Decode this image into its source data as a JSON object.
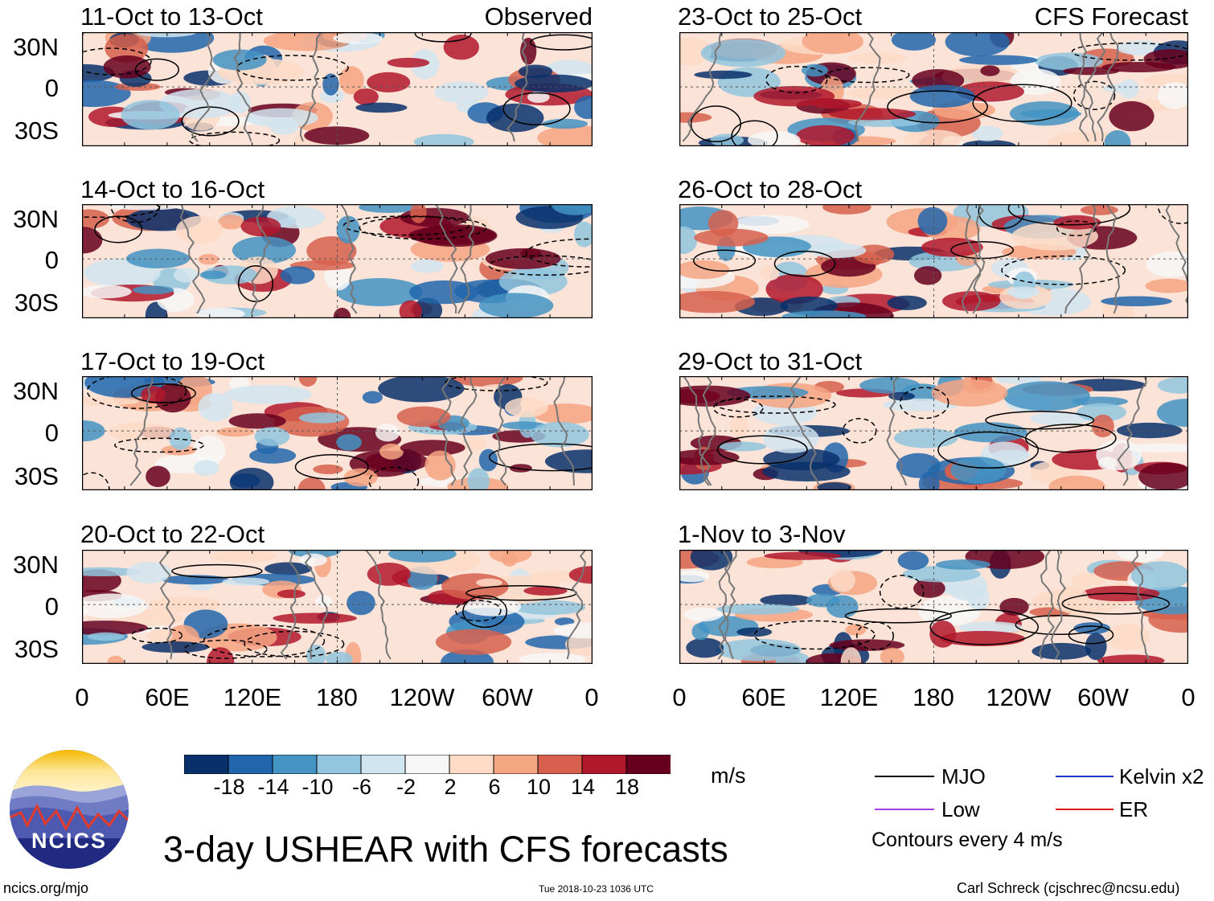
{
  "panels": [
    {
      "title": "11-Oct to 13-Oct",
      "right_label": "Observed"
    },
    {
      "title": "14-Oct to 16-Oct",
      "right_label": ""
    },
    {
      "title": "17-Oct to 19-Oct",
      "right_label": ""
    },
    {
      "title": "20-Oct to 22-Oct",
      "right_label": ""
    },
    {
      "title": "23-Oct to 25-Oct",
      "right_label": "CFS Forecast"
    },
    {
      "title": "26-Oct to 28-Oct",
      "right_label": ""
    },
    {
      "title": "29-Oct to 31-Oct",
      "right_label": ""
    },
    {
      "title": "1-Nov to 3-Nov",
      "right_label": ""
    }
  ],
  "lat_labels": [
    "30N",
    "0",
    "30S"
  ],
  "lon_labels": [
    "0",
    "60E",
    "120E",
    "180",
    "120W",
    "60W",
    "0"
  ],
  "colorbar": {
    "ticks": [
      "-18",
      "-14",
      "-10",
      "-6",
      "-2",
      "2",
      "6",
      "10",
      "14",
      "18"
    ],
    "colors": [
      "#08306b",
      "#2166ac",
      "#4393c3",
      "#92c5de",
      "#d1e5f0",
      "#f7f7f7",
      "#fddbc7",
      "#f4a582",
      "#d6604d",
      "#b2182b",
      "#67001f"
    ],
    "units": "m/s"
  },
  "legend": {
    "items": [
      {
        "label": "MJO",
        "color": "#000000"
      },
      {
        "label": "Kelvin x2",
        "color": "#2233cc"
      },
      {
        "label": "Low",
        "color": "#a040e0"
      },
      {
        "label": "ER",
        "color": "#dd1111"
      }
    ],
    "note": "Contours every 4 m/s"
  },
  "main_title": "3-day USHEAR with CFS forecasts",
  "footer": {
    "website": "ncics.org/mjo",
    "timestamp": "Tue 2018-10-23 1036 UTC",
    "author": "Carl Schreck (cjschrec@ncsu.edu)"
  },
  "logo_text": "NCICS"
}
